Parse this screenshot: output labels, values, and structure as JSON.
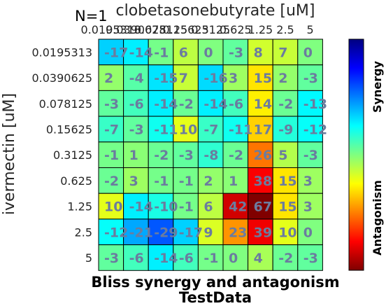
{
  "chart_data": {
    "type": "heatmap",
    "title": "Bliss synergy and antagonism",
    "subtitle": "TestData",
    "xlabel": "clobetasonebutyrate [uM]",
    "ylabel": "ivermectin [uM]",
    "replicate_label": "N=1",
    "x_categories": [
      "0.0195313",
      "0.0390625",
      "0.078125",
      "0.15625",
      "0.3125",
      "0.625",
      "1.25",
      "2.5",
      "5"
    ],
    "y_categories": [
      "0.0195313",
      "0.0390625",
      "0.078125",
      "0.15625",
      "0.3125",
      "0.625",
      "1.25",
      "2.5",
      "5"
    ],
    "values": [
      [
        -17,
        -14,
        -1,
        6,
        0,
        -3,
        8,
        7,
        0
      ],
      [
        2,
        -4,
        -15,
        7,
        -16,
        3,
        15,
        2,
        -3
      ],
      [
        -3,
        -6,
        -14,
        -2,
        -14,
        -6,
        14,
        -2,
        -13
      ],
      [
        -7,
        -3,
        -11,
        10,
        -7,
        -11,
        17,
        -9,
        -12
      ],
      [
        -1,
        1,
        -2,
        -3,
        -8,
        -2,
        26,
        5,
        -3
      ],
      [
        -2,
        3,
        -1,
        -1,
        2,
        1,
        38,
        15,
        3
      ],
      [
        10,
        -14,
        -10,
        -1,
        6,
        42,
        67,
        15,
        3
      ],
      [
        -12,
        -21,
        -29,
        -17,
        9,
        23,
        39,
        10,
        0
      ],
      [
        -3,
        -6,
        -14,
        -6,
        -1,
        0,
        4,
        -2,
        -3
      ]
    ],
    "value_range": [
      -50,
      50
    ],
    "colorbar": {
      "colormap": "jet",
      "top_label": "Synergy",
      "bottom_label": "Antagonism"
    }
  }
}
